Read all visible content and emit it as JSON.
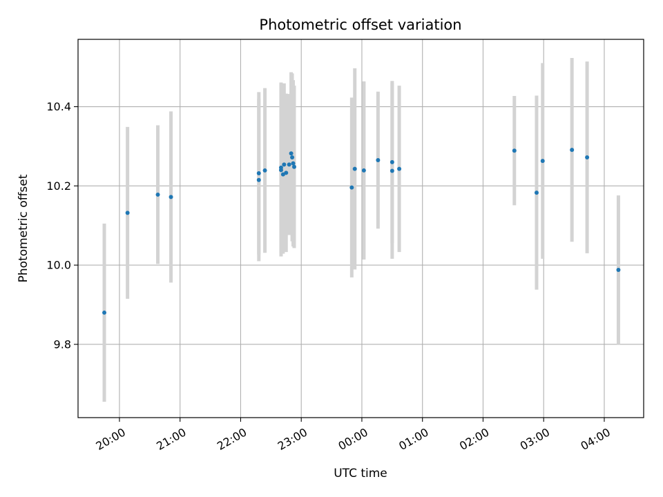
{
  "chart_data": {
    "type": "scatter",
    "title": "Photometric offset variation",
    "xlabel": "UTC time",
    "ylabel": "Photometric offset",
    "x_axis_type": "time",
    "xlim": [
      "19:19",
      "04:39"
    ],
    "ylim": [
      9.615,
      10.57
    ],
    "xticks": [
      "20:00",
      "21:00",
      "22:00",
      "23:00",
      "00:00",
      "01:00",
      "02:00",
      "03:00",
      "04:00"
    ],
    "yticks": [
      9.8,
      10.0,
      10.2,
      10.4
    ],
    "ytick_labels": [
      "9.8",
      "10.0",
      "10.2",
      "10.4"
    ],
    "grid": true,
    "colors": {
      "points": "#1f77b4",
      "errorbars": "#d3d3d3",
      "grid": "#b0b0b0"
    },
    "points": [
      {
        "x": "19:45",
        "y": 9.88,
        "err": 0.225
      },
      {
        "x": "20:08",
        "y": 10.132,
        "err": 0.217
      },
      {
        "x": "20:38",
        "y": 10.178,
        "err": 0.175
      },
      {
        "x": "20:51",
        "y": 10.172,
        "err": 0.216
      },
      {
        "x": "22:18",
        "y": 10.232,
        "err": 0.205
      },
      {
        "x": "22:18",
        "y": 10.215,
        "err": 0.205
      },
      {
        "x": "22:24",
        "y": 10.239,
        "err": 0.208
      },
      {
        "x": "22:40",
        "y": 10.24,
        "err": 0.218
      },
      {
        "x": "22:40",
        "y": 10.246,
        "err": 0.215
      },
      {
        "x": "22:42",
        "y": 10.229,
        "err": 0.2
      },
      {
        "x": "22:43",
        "y": 10.254,
        "err": 0.205
      },
      {
        "x": "22:45",
        "y": 10.233,
        "err": 0.2
      },
      {
        "x": "22:48",
        "y": 10.254,
        "err": 0.178
      },
      {
        "x": "22:50",
        "y": 10.282,
        "err": 0.205
      },
      {
        "x": "22:51",
        "y": 10.272,
        "err": 0.212
      },
      {
        "x": "22:52",
        "y": 10.257,
        "err": 0.21
      },
      {
        "x": "22:53",
        "y": 10.248,
        "err": 0.205
      },
      {
        "x": "23:50",
        "y": 10.196,
        "err": 0.227
      },
      {
        "x": "23:53",
        "y": 10.243,
        "err": 0.254
      },
      {
        "x": "00:02",
        "y": 10.239,
        "err": 0.225
      },
      {
        "x": "00:16",
        "y": 10.265,
        "err": 0.173
      },
      {
        "x": "00:30",
        "y": 10.26,
        "err": 0.205
      },
      {
        "x": "00:30",
        "y": 10.238,
        "err": 0.222
      },
      {
        "x": "00:37",
        "y": 10.243,
        "err": 0.21
      },
      {
        "x": "02:31",
        "y": 10.289,
        "err": 0.138
      },
      {
        "x": "02:53",
        "y": 10.183,
        "err": 0.245
      },
      {
        "x": "02:59",
        "y": 10.263,
        "err": 0.247
      },
      {
        "x": "03:28",
        "y": 10.291,
        "err": 0.232
      },
      {
        "x": "03:43",
        "y": 10.272,
        "err": 0.242
      },
      {
        "x": "04:14",
        "y": 9.988,
        "err": 0.188
      }
    ]
  }
}
